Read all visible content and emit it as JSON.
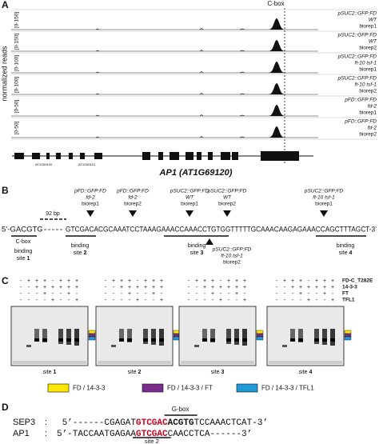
{
  "panel_a": {
    "label": "A",
    "y_axis_label": "normalized reads",
    "feature": "C-box",
    "tracks": [
      {
        "range": "[0-150]",
        "lines": [
          "pSUC2::GFP:FD",
          "WT",
          "biorep1"
        ]
      },
      {
        "range": "[0-150]",
        "lines": [
          "pSUC2::GFP:FD",
          "WT",
          "biorep2"
        ]
      },
      {
        "range": "[0-100]",
        "lines": [
          "pSUC2::GFP:FD",
          "ft-10 tsf-1",
          "biorep1"
        ]
      },
      {
        "range": "[0-100]",
        "lines": [
          "pSUC2::GFP:FD",
          "ft-10 tsf-1",
          "biorep2"
        ]
      },
      {
        "range": "[0-50]",
        "lines": [
          "pFD::GFP:FD",
          "fd-2",
          "biorep1"
        ]
      },
      {
        "range": "[0-50]",
        "lines": [
          "pFD::GFP:FD",
          "fd-2",
          "biorep2"
        ]
      }
    ],
    "gene_labels": [
      "AT1G69100",
      "AT1G69110"
    ],
    "gene_name": "AP1 (AT1G69120)"
  },
  "panel_b": {
    "label": "B",
    "gap": "92 bp",
    "seq_start": "5’-GACGTC",
    "sequence": "GTCGACACGCAAATCCTAAAGAAACCAAACCTGTGGTTTTTGCAAACAAGAGAAACCAGCTTTAGCT-3’",
    "peaks_above": [
      {
        "lines": [
          "pFD::GFP:FD",
          "fd-2",
          "biorep1"
        ]
      },
      {
        "lines": [
          "pFD::GFP:FD",
          "fd-2",
          "biorep2"
        ]
      },
      {
        "lines": [
          "pSUC2::GFP:FD",
          "WT",
          "biorep1"
        ]
      },
      {
        "lines": [
          "pSUC2::GFP:FD",
          "WT",
          "biorep2"
        ]
      },
      {
        "lines": [
          "pSUC2::GFP:FD",
          "ft-10 tsf-1",
          "biorep1"
        ]
      }
    ],
    "peak_below": {
      "lines": [
        "pSUC2::GFP:FD",
        "ft-10 tsf-1",
        "biorep2"
      ]
    },
    "c_box": "C-box",
    "sites": [
      {
        "line1": "binding",
        "line2": "site",
        "num": "1"
      },
      {
        "line1": "binding",
        "line2": "site",
        "num": "2"
      },
      {
        "line1": "binding",
        "line2": "site",
        "num": "3"
      },
      {
        "line1": "binding",
        "line2": "site",
        "num": "4"
      }
    ]
  },
  "panel_c": {
    "label": "C",
    "rows": [
      {
        "name": "FD-C_T282E",
        "signs": [
          "-",
          "+",
          "+",
          "+",
          "-",
          "+",
          "+",
          "+"
        ]
      },
      {
        "name": "14-3-3",
        "signs": [
          "-",
          "-",
          "+",
          "+",
          "+",
          "+",
          "+",
          "+"
        ]
      },
      {
        "name": "FT",
        "signs": [
          "-",
          "-",
          "-",
          "+",
          "-",
          "-",
          "+",
          "-"
        ]
      },
      {
        "name": "TFL1",
        "signs": [
          "-",
          "-",
          "-",
          "-",
          "+",
          "-",
          "-",
          "+"
        ]
      }
    ],
    "gels": [
      {
        "text": "site",
        "num": "1"
      },
      {
        "text": "site",
        "num": "2"
      },
      {
        "text": "site",
        "num": "3"
      },
      {
        "text": "site",
        "num": "4"
      }
    ],
    "legend": [
      {
        "label": "FD / 14-3-3",
        "color": "#ffe600"
      },
      {
        "label": "FD / 14-3-3 / FT",
        "color": "#7b2d8e"
      },
      {
        "label": "FD / 14-3-3 / TFL1",
        "color": "#1e9ad6"
      }
    ]
  },
  "panel_d": {
    "label": "D",
    "g_box": "G-box",
    "site": "site 2",
    "separator": ":",
    "seqs": [
      {
        "name": "SEP3",
        "pre": "5’------CGAGAT",
        "red": "GTCGAC",
        "bold": "ACGTG",
        "post": "TCCAAACTCAT-3’"
      },
      {
        "name": "AP1",
        "pre": "5’-TACCAATGAGAA",
        "red": "GTCGAC",
        "post": "CAACCTCA------3’"
      }
    ]
  }
}
